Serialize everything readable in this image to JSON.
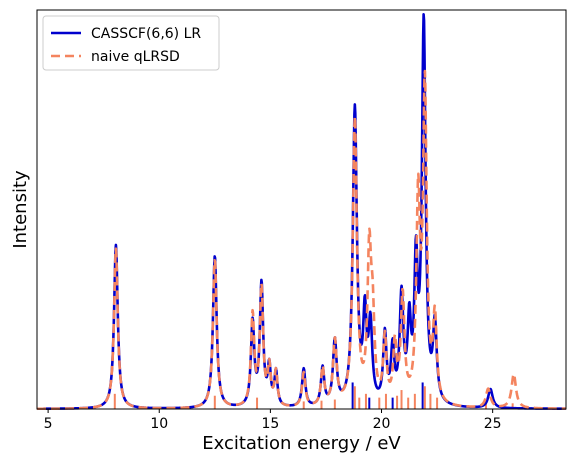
{
  "chart_data": {
    "type": "line",
    "title": "",
    "xlabel": "Excitation energy / eV",
    "ylabel": "Intensity",
    "xlim": [
      4.5,
      28.3
    ],
    "ylim": [
      0,
      1.0
    ],
    "xticks": [
      5,
      10,
      15,
      20,
      25
    ],
    "yticks_shown": false,
    "grid": false,
    "legend": {
      "position": "top-left"
    },
    "series": [
      {
        "name": "CASSCF(6,6) LR",
        "color": "#0000cd",
        "style": "solid",
        "peaks": [
          {
            "x": 8.05,
            "h": 0.43,
            "w": 0.1
          },
          {
            "x": 12.5,
            "h": 0.4,
            "w": 0.1
          },
          {
            "x": 14.2,
            "h": 0.22,
            "w": 0.09
          },
          {
            "x": 14.6,
            "h": 0.32,
            "w": 0.09
          },
          {
            "x": 14.95,
            "h": 0.1,
            "w": 0.08
          },
          {
            "x": 15.25,
            "h": 0.09,
            "w": 0.08
          },
          {
            "x": 16.5,
            "h": 0.1,
            "w": 0.09
          },
          {
            "x": 17.35,
            "h": 0.1,
            "w": 0.09
          },
          {
            "x": 17.9,
            "h": 0.17,
            "w": 0.1
          },
          {
            "x": 18.8,
            "h": 0.78,
            "w": 0.11
          },
          {
            "x": 19.25,
            "h": 0.22,
            "w": 0.09
          },
          {
            "x": 19.5,
            "h": 0.2,
            "w": 0.1
          },
          {
            "x": 20.15,
            "h": 0.18,
            "w": 0.09
          },
          {
            "x": 20.5,
            "h": 0.14,
            "w": 0.09
          },
          {
            "x": 20.9,
            "h": 0.28,
            "w": 0.1
          },
          {
            "x": 21.25,
            "h": 0.2,
            "w": 0.09
          },
          {
            "x": 21.55,
            "h": 0.35,
            "w": 0.09
          },
          {
            "x": 21.9,
            "h": 1.0,
            "w": 0.1
          },
          {
            "x": 22.4,
            "h": 0.2,
            "w": 0.1
          },
          {
            "x": 24.9,
            "h": 0.05,
            "w": 0.12
          }
        ]
      },
      {
        "name": "naive qLRSD",
        "color": "#f4845f",
        "style": "dashed",
        "peaks": [
          {
            "x": 8.05,
            "h": 0.42,
            "w": 0.1
          },
          {
            "x": 12.5,
            "h": 0.39,
            "w": 0.1
          },
          {
            "x": 14.2,
            "h": 0.24,
            "w": 0.09
          },
          {
            "x": 14.6,
            "h": 0.31,
            "w": 0.09
          },
          {
            "x": 14.95,
            "h": 0.1,
            "w": 0.08
          },
          {
            "x": 15.25,
            "h": 0.09,
            "w": 0.08
          },
          {
            "x": 16.5,
            "h": 0.09,
            "w": 0.09
          },
          {
            "x": 17.35,
            "h": 0.1,
            "w": 0.09
          },
          {
            "x": 17.9,
            "h": 0.17,
            "w": 0.1
          },
          {
            "x": 18.8,
            "h": 0.75,
            "w": 0.11
          },
          {
            "x": 19.45,
            "h": 0.38,
            "w": 0.1
          },
          {
            "x": 19.6,
            "h": 0.2,
            "w": 0.1
          },
          {
            "x": 20.15,
            "h": 0.17,
            "w": 0.09
          },
          {
            "x": 20.6,
            "h": 0.15,
            "w": 0.09
          },
          {
            "x": 20.95,
            "h": 0.28,
            "w": 0.1
          },
          {
            "x": 21.65,
            "h": 0.52,
            "w": 0.1
          },
          {
            "x": 21.95,
            "h": 0.82,
            "w": 0.1
          },
          {
            "x": 22.4,
            "h": 0.22,
            "w": 0.1
          },
          {
            "x": 24.8,
            "h": 0.05,
            "w": 0.12
          },
          {
            "x": 25.95,
            "h": 0.09,
            "w": 0.12
          }
        ]
      }
    ],
    "sticks": [
      {
        "x": 8.0,
        "h": 0.04,
        "color": "#f4845f"
      },
      {
        "x": 12.5,
        "h": 0.035,
        "color": "#f4845f"
      },
      {
        "x": 14.4,
        "h": 0.03,
        "color": "#f4845f"
      },
      {
        "x": 16.5,
        "h": 0.02,
        "color": "#f4845f"
      },
      {
        "x": 17.3,
        "h": 0.022,
        "color": "#f4845f"
      },
      {
        "x": 17.9,
        "h": 0.025,
        "color": "#f4845f"
      },
      {
        "x": 18.7,
        "h": 0.07,
        "color": "#0000cd"
      },
      {
        "x": 18.8,
        "h": 0.06,
        "color": "#f4845f"
      },
      {
        "x": 19.0,
        "h": 0.03,
        "color": "#f4845f"
      },
      {
        "x": 19.3,
        "h": 0.04,
        "color": "#f4845f"
      },
      {
        "x": 19.45,
        "h": 0.03,
        "color": "#0000cd"
      },
      {
        "x": 19.9,
        "h": 0.03,
        "color": "#f4845f"
      },
      {
        "x": 20.2,
        "h": 0.04,
        "color": "#f4845f"
      },
      {
        "x": 20.5,
        "h": 0.03,
        "color": "#0000cd"
      },
      {
        "x": 20.7,
        "h": 0.035,
        "color": "#f4845f"
      },
      {
        "x": 20.9,
        "h": 0.05,
        "color": "#f4845f"
      },
      {
        "x": 21.2,
        "h": 0.03,
        "color": "#f4845f"
      },
      {
        "x": 21.5,
        "h": 0.04,
        "color": "#f4845f"
      },
      {
        "x": 21.85,
        "h": 0.07,
        "color": "#0000cd"
      },
      {
        "x": 21.95,
        "h": 0.06,
        "color": "#f4845f"
      },
      {
        "x": 22.2,
        "h": 0.04,
        "color": "#f4845f"
      },
      {
        "x": 22.5,
        "h": 0.03,
        "color": "#f4845f"
      },
      {
        "x": 24.7,
        "h": 0.015,
        "color": "#f4845f"
      },
      {
        "x": 25.9,
        "h": 0.015,
        "color": "#f4845f"
      }
    ]
  }
}
